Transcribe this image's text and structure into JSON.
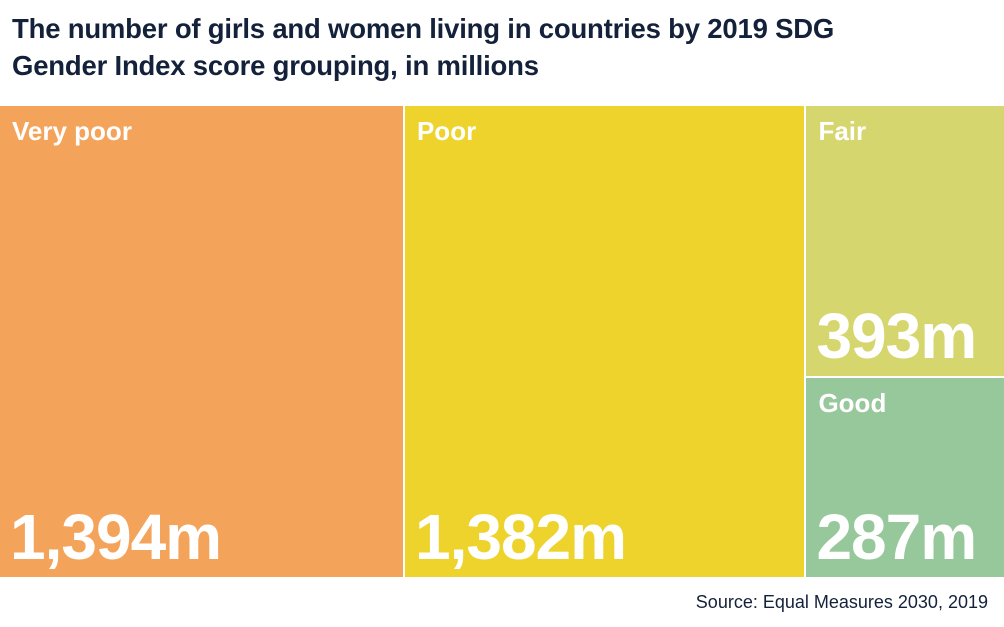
{
  "chart_data": {
    "type": "treemap",
    "title_lines": [
      "The number of girls and women living in countries by 2019 SDG",
      "Gender Index score grouping, in millions"
    ],
    "unit": "millions",
    "categories": [
      {
        "name": "Very poor",
        "value": 1394,
        "label": "1,394m",
        "color": "#f4a45a"
      },
      {
        "name": "Poor",
        "value": 1382,
        "label": "1,382m",
        "color": "#edd32c"
      },
      {
        "name": "Fair",
        "value": 393,
        "label": "393m",
        "color": "#d6d66f"
      },
      {
        "name": "Good",
        "value": 287,
        "label": "287m",
        "color": "#97c89b"
      }
    ],
    "source": "Source: Equal Measures 2030, 2019"
  }
}
